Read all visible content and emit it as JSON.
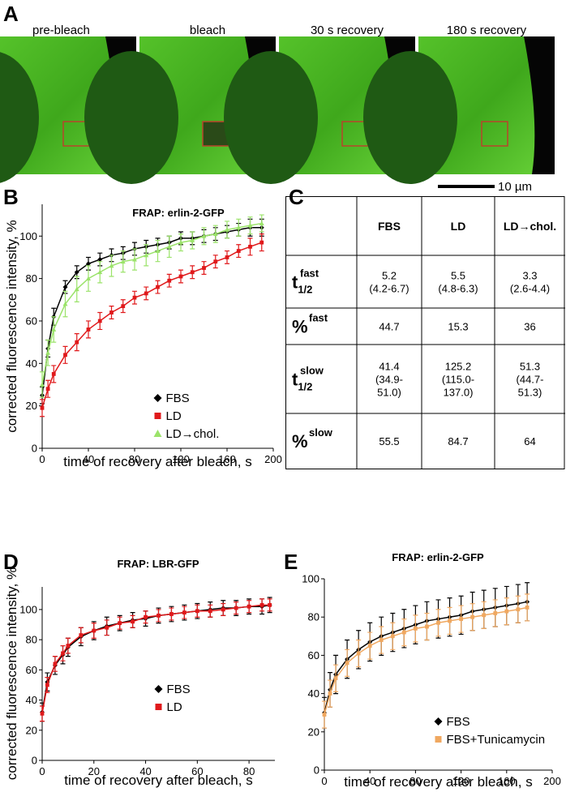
{
  "figure": {
    "panels": [
      "A",
      "B",
      "C",
      "D",
      "E"
    ],
    "images": [
      "pre-bleach",
      "bleach",
      "30 s  recovery",
      "180 s recovery"
    ],
    "scale_bar": "10 µm"
  },
  "table": {
    "columns": [
      "FBS",
      "LD",
      "LD→chol."
    ],
    "rows": [
      {
        "label": "t",
        "sub": "1/2",
        "sup": "fast",
        "cells": [
          [
            "5.2",
            "(4.2-6.7)"
          ],
          [
            "5.5",
            "(4.8-6.3)"
          ],
          [
            "3.3",
            "(2.6-4.4)"
          ]
        ]
      },
      {
        "label": "%",
        "sup": "fast",
        "cells": [
          [
            "44.7"
          ],
          [
            "15.3"
          ],
          [
            "36"
          ]
        ]
      },
      {
        "label": "t",
        "sub": "1/2",
        "sup": "slow",
        "cells": [
          [
            "41.4",
            "(34.9-",
            "51.0)"
          ],
          [
            "125.2",
            "(115.0-",
            "137.0)"
          ],
          [
            "51.3",
            "(44.7-",
            "51.3)"
          ]
        ]
      },
      {
        "label": "%",
        "sup": "slow",
        "cells": [
          [
            "55.5"
          ],
          [
            "84.7"
          ],
          [
            "64"
          ]
        ]
      }
    ]
  },
  "chart_data": [
    {
      "type": "line",
      "title": "FRAP: erlin-2-GFP",
      "x_label": "time of recovery after bleach, s",
      "y_label": "corrected fluorescence intensity, %",
      "x": [
        0,
        5,
        10,
        20,
        30,
        40,
        50,
        60,
        70,
        80,
        90,
        100,
        110,
        120,
        130,
        140,
        150,
        160,
        170,
        180,
        190
      ],
      "series": [
        {
          "name": "FBS",
          "color": "#000000",
          "marker": "diamond",
          "values": [
            25,
            47,
            62,
            76,
            83,
            87,
            89,
            91,
            92,
            94,
            95,
            96,
            97,
            99,
            99,
            100,
            101,
            102,
            103,
            104,
            104
          ],
          "errors": [
            4,
            4,
            4,
            3,
            3,
            3,
            3,
            3,
            3,
            3,
            3,
            3,
            3,
            3,
            3,
            3,
            3,
            3,
            3,
            4,
            4
          ]
        },
        {
          "name": "LD",
          "color": "#e0191b",
          "marker": "square",
          "values": [
            19,
            28,
            35,
            44,
            50,
            56,
            60,
            64,
            67,
            71,
            73,
            76,
            79,
            81,
            83,
            85,
            88,
            90,
            93,
            95,
            97
          ],
          "errors": [
            4,
            4,
            4,
            4,
            4,
            4,
            4,
            3,
            3,
            3,
            3,
            3,
            3,
            3,
            3,
            3,
            3,
            3,
            3,
            4,
            4
          ]
        },
        {
          "name": "LD→chol.",
          "color": "#9be36a",
          "marker": "triangle",
          "values": [
            30,
            45,
            56,
            68,
            75,
            80,
            83,
            86,
            88,
            89,
            91,
            93,
            95,
            97,
            98,
            100,
            101,
            103,
            104,
            105,
            106
          ],
          "errors": [
            6,
            6,
            6,
            6,
            6,
            6,
            5,
            5,
            5,
            5,
            5,
            5,
            5,
            4,
            4,
            4,
            4,
            4,
            4,
            4,
            4
          ]
        }
      ],
      "xlim": [
        0,
        200
      ],
      "xticks": [
        0,
        40,
        80,
        120,
        160,
        200
      ],
      "ylim": [
        0,
        115
      ],
      "yticks": [
        0,
        20,
        40,
        60,
        80,
        100
      ],
      "legend": "lower right"
    },
    {
      "type": "line",
      "title": "FRAP: LBR-GFP",
      "x_label": "time of recovery after bleach, s",
      "y_label": "corrected fluorescence intensity, %",
      "x": [
        0,
        2,
        5,
        8,
        10,
        15,
        20,
        25,
        30,
        35,
        40,
        45,
        50,
        55,
        60,
        65,
        70,
        75,
        80,
        85,
        88
      ],
      "series": [
        {
          "name": "FBS",
          "color": "#000000",
          "marker": "diamond",
          "values": [
            32,
            52,
            63,
            70,
            75,
            82,
            86,
            89,
            91,
            93,
            94,
            96,
            97,
            98,
            99,
            100,
            101,
            101,
            102,
            102,
            103
          ],
          "errors": [
            6,
            6,
            6,
            6,
            6,
            6,
            6,
            6,
            5,
            5,
            5,
            5,
            5,
            5,
            5,
            5,
            5,
            5,
            5,
            5,
            5
          ]
        },
        {
          "name": "LD",
          "color": "#e0191b",
          "marker": "square",
          "values": [
            31,
            50,
            64,
            71,
            76,
            83,
            86,
            88,
            91,
            92,
            95,
            96,
            97,
            98,
            99,
            99,
            100,
            101,
            102,
            103,
            103
          ],
          "errors": [
            5,
            5,
            5,
            5,
            5,
            5,
            5,
            5,
            4,
            4,
            4,
            4,
            4,
            4,
            4,
            4,
            4,
            4,
            4,
            4,
            4
          ]
        }
      ],
      "xlim": [
        0,
        90
      ],
      "xticks": [
        0,
        20,
        40,
        60,
        80
      ],
      "ylim": [
        0,
        115
      ],
      "yticks": [
        0,
        20,
        40,
        60,
        80,
        100
      ],
      "legend": "lower right"
    },
    {
      "type": "line",
      "title": "FRAP: erlin-2-GFP",
      "x_label": "time of recovery after bleach, s",
      "x": [
        0,
        5,
        10,
        20,
        30,
        40,
        50,
        60,
        70,
        80,
        90,
        100,
        110,
        120,
        130,
        140,
        150,
        160,
        170,
        178
      ],
      "series": [
        {
          "name": "FBS",
          "color": "#000000",
          "marker": "diamond",
          "values": [
            30,
            42,
            50,
            58,
            63,
            67,
            70,
            72,
            74,
            76,
            78,
            79,
            80,
            81,
            83,
            84,
            85,
            86,
            87,
            88
          ],
          "errors": [
            8,
            9,
            10,
            10,
            10,
            10,
            10,
            10,
            10,
            10,
            10,
            10,
            10,
            10,
            10,
            10,
            10,
            10,
            10,
            10
          ]
        },
        {
          "name": "FBS+Tunicamycin",
          "color": "#f0a860",
          "marker": "square",
          "values": [
            29,
            40,
            48,
            56,
            61,
            65,
            68,
            70,
            72,
            74,
            75,
            77,
            78,
            79,
            80,
            81,
            82,
            83,
            84,
            85
          ],
          "errors": [
            7,
            7,
            7,
            7,
            7,
            7,
            7,
            7,
            7,
            7,
            7,
            7,
            7,
            7,
            7,
            7,
            7,
            7,
            7,
            7
          ]
        }
      ],
      "xlim": [
        0,
        200
      ],
      "xticks": [
        0,
        40,
        80,
        120,
        160,
        200
      ],
      "ylim": [
        0,
        100
      ],
      "yticks": [
        0,
        20,
        40,
        60,
        80,
        100
      ],
      "legend": "lower right"
    }
  ]
}
